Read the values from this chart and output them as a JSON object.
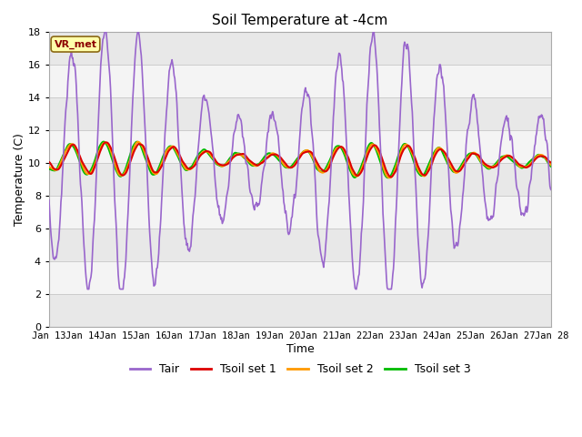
{
  "title": "Soil Temperature at -4cm",
  "xlabel": "Time",
  "ylabel": "Temperature (C)",
  "ylim": [
    0,
    18
  ],
  "yticks": [
    0,
    2,
    4,
    6,
    8,
    10,
    12,
    14,
    16,
    18
  ],
  "x_tick_labels": [
    "Jan 13",
    "Jan 14",
    "Jan 15",
    "Jan 16",
    "Jan 17",
    "Jan 18",
    "Jan 19",
    "Jan 20",
    "Jan 21",
    "Jan 22",
    "Jan 23",
    "Jan 24",
    "Jan 25",
    "Jan 26",
    "Jan 27",
    "Jan 28"
  ],
  "annotation_text": "VR_met",
  "figure_bg": "#ffffff",
  "plot_bg_light": "#f0f0f0",
  "plot_bg_dark": "#e0e0e0",
  "grid_color": "#cccccc",
  "line_colors": {
    "Tair": "#9966cc",
    "Tsoil1": "#dd0000",
    "Tsoil2": "#ff9900",
    "Tsoil3": "#00bb00"
  },
  "legend_labels": [
    "Tair",
    "Tsoil set 1",
    "Tsoil set 2",
    "Tsoil set 3"
  ]
}
